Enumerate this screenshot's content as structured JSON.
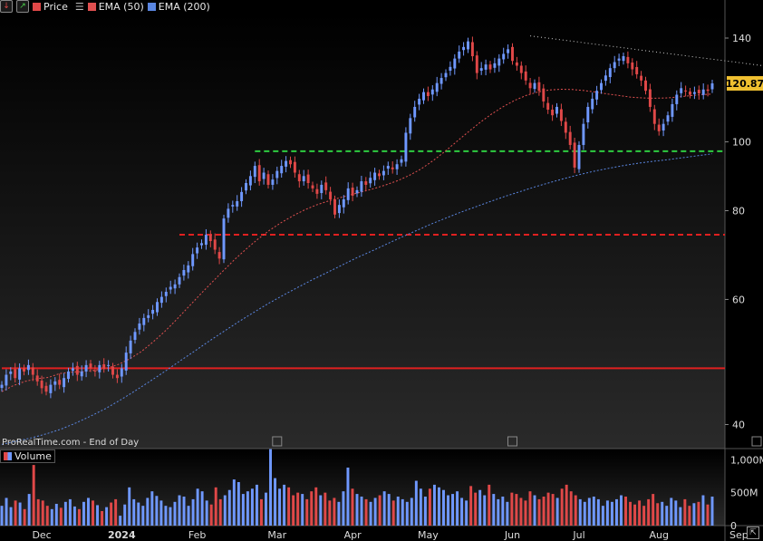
{
  "legend": {
    "price_label": "Price",
    "ema50_label": "EMA (50)",
    "ema200_label": "EMA (200)",
    "ema50_color": "#e05050",
    "ema200_color": "#5a86e0"
  },
  "source_text": "ProRealTime.com - End of Day",
  "volume_label": "Volume",
  "last_price_label": "120.87",
  "colors": {
    "up": "#6f98ff",
    "down": "#e04848",
    "background": "#000000"
  },
  "chart_data": {
    "type": "candlestick",
    "title": "",
    "price_axis": {
      "scale": "log",
      "ticks": [
        40,
        60,
        80,
        100,
        140
      ],
      "ylim": [
        37,
        152
      ]
    },
    "volume_axis": {
      "ticks": [
        "0",
        "500M",
        "1,000M"
      ],
      "ylim": [
        0,
        1100
      ]
    },
    "time_axis": {
      "labels": [
        "Dec",
        "2024",
        "Feb",
        "Mar",
        "Apr",
        "May",
        "Jun",
        "Jul",
        "Aug",
        "Sep"
      ],
      "label_bar_index": [
        9,
        27,
        44,
        62,
        79,
        96,
        115,
        130,
        148,
        166
      ]
    },
    "last_price": 120.87,
    "levels": [
      {
        "name": "resistance-green",
        "value": 97,
        "style": "dashed",
        "color": "#2ecc40",
        "from_bar": 57
      },
      {
        "name": "support-red",
        "value": 74,
        "style": "dashed",
        "color": "#e02020",
        "from_bar": 40
      },
      {
        "name": "long-support",
        "value": 48,
        "style": "solid",
        "color": "#e02020",
        "from_bar": 0
      }
    ],
    "trendline": {
      "from": [
        119,
        141
      ],
      "to": [
        180,
        126
      ],
      "style": "dotted",
      "color": "#cccccc"
    },
    "series": [
      {
        "name": "Price",
        "close": [
          45.5,
          47.0,
          47.5,
          46.5,
          48.0,
          47.5,
          48.5,
          47.0,
          46.0,
          45.0,
          44.5,
          45.5,
          46.0,
          45.5,
          46.5,
          47.5,
          48.0,
          47.0,
          47.5,
          48.5,
          48.0,
          47.5,
          48.5,
          48.0,
          48.5,
          47.0,
          46.5,
          48.0,
          50.5,
          52.5,
          54.0,
          55.5,
          56.5,
          57.0,
          58.0,
          59.5,
          60.5,
          61.5,
          62.5,
          63.0,
          64.5,
          66.0,
          67.0,
          69.5,
          71.0,
          72.0,
          74.0,
          72.5,
          70.5,
          68.5,
          78.0,
          80.5,
          81.5,
          82.5,
          85.0,
          87.5,
          89.5,
          92.5,
          88.0,
          90.5,
          87.0,
          88.5,
          91.0,
          92.5,
          94.0,
          93.0,
          90.5,
          88.0,
          89.5,
          87.5,
          86.0,
          84.5,
          87.0,
          85.5,
          83.0,
          79.0,
          81.5,
          83.0,
          86.0,
          84.0,
          85.5,
          88.0,
          87.0,
          89.0,
          90.5,
          89.5,
          91.0,
          92.5,
          91.5,
          93.0,
          94.5,
          103.0,
          108.0,
          112.0,
          115.0,
          117.5,
          116.0,
          118.5,
          121.0,
          123.0,
          125.0,
          127.5,
          131.0,
          134.0,
          136.0,
          138.5,
          132.0,
          125.0,
          127.0,
          128.5,
          126.5,
          129.0,
          131.0,
          133.0,
          135.0,
          130.0,
          128.0,
          125.0,
          122.0,
          119.0,
          121.0,
          118.0,
          114.0,
          111.0,
          109.0,
          112.0,
          107.0,
          103.0,
          99.0,
          92.0,
          99.0,
          106.0,
          112.0,
          115.0,
          118.0,
          121.0,
          124.0,
          127.0,
          129.5,
          131.0,
          132.0,
          129.0,
          126.5,
          124.5,
          122.0,
          118.0,
          112.0,
          106.0,
          103.5,
          106.0,
          109.0,
          113.0,
          116.5,
          119.0,
          118.0,
          116.5,
          117.5,
          117.0,
          118.5,
          118.0,
          120.87
        ]
      },
      {
        "name": "EMA (50)",
        "values": [
          44.5,
          45.4,
          46.0,
          46.4,
          46.6,
          47.2,
          47.4,
          47.5,
          47.7,
          48.0,
          48.6,
          49.5,
          50.7,
          52.3,
          54.1,
          56.2,
          58.5,
          60.9,
          63.3,
          65.8,
          68.3,
          70.7,
          73.0,
          75.1,
          77.0,
          78.7,
          80.2,
          81.5,
          82.5,
          83.4,
          84.3,
          85.1,
          86.0,
          87.0,
          88.2,
          89.7,
          91.6,
          94.0,
          96.8,
          99.9,
          103.1,
          106.3,
          109.3,
          112.0,
          114.3,
          116.2,
          117.5,
          118.3,
          118.6,
          118.5,
          118.1,
          117.5,
          116.8,
          116.2,
          115.6,
          115.3,
          115.2,
          115.3,
          115.6,
          116.1,
          116.5,
          116.8
        ]
      },
      {
        "name": "EMA (200)",
        "values": [
          37.5,
          37.9,
          38.3,
          38.8,
          39.4,
          40.2,
          41.1,
          42.1,
          43.3,
          44.6,
          46.0,
          47.5,
          49.1,
          50.7,
          52.4,
          54.1,
          55.8,
          57.5,
          59.2,
          60.8,
          62.4,
          64.0,
          65.5,
          67.1,
          68.7,
          70.2,
          71.8,
          73.4,
          75.0,
          76.6,
          78.1,
          79.6,
          81.0,
          82.4,
          83.8,
          85.1,
          86.4,
          87.6,
          88.8,
          89.9,
          90.9,
          91.8,
          92.6,
          93.3,
          93.9,
          94.4,
          95.0,
          95.6,
          96.2
        ]
      }
    ],
    "volume_in_millions": [
      300,
      420,
      280,
      380,
      350,
      250,
      480,
      920,
      400,
      380,
      300,
      250,
      330,
      270,
      360,
      400,
      290,
      250,
      360,
      420,
      380,
      310,
      220,
      280,
      350,
      400,
      150,
      320,
      580,
      400,
      350,
      300,
      420,
      520,
      450,
      380,
      300,
      280,
      360,
      460,
      440,
      300,
      400,
      560,
      520,
      380,
      320,
      580,
      400,
      460,
      540,
      700,
      660,
      480,
      520,
      560,
      620,
      400,
      500,
      1160,
      720,
      560,
      620,
      580,
      460,
      500,
      480,
      400,
      520,
      580,
      460,
      500,
      380,
      420,
      360,
      520,
      880,
      560,
      480,
      440,
      400,
      360,
      420,
      460,
      520,
      480,
      380,
      440,
      400,
      360,
      420,
      680,
      560,
      440,
      560,
      620,
      580,
      540,
      460,
      480,
      520,
      420,
      380,
      600,
      500,
      540,
      460,
      620,
      480,
      400,
      440,
      360,
      500,
      480,
      420,
      380,
      520,
      460,
      400,
      440,
      500,
      480,
      420,
      560,
      620,
      520,
      460,
      400,
      360,
      420,
      440,
      400,
      300,
      380,
      360,
      400,
      460,
      440,
      360,
      320,
      380,
      300,
      400,
      480,
      340,
      360,
      300,
      420,
      380,
      280,
      400,
      300,
      340,
      360,
      460,
      320,
      440
    ]
  }
}
